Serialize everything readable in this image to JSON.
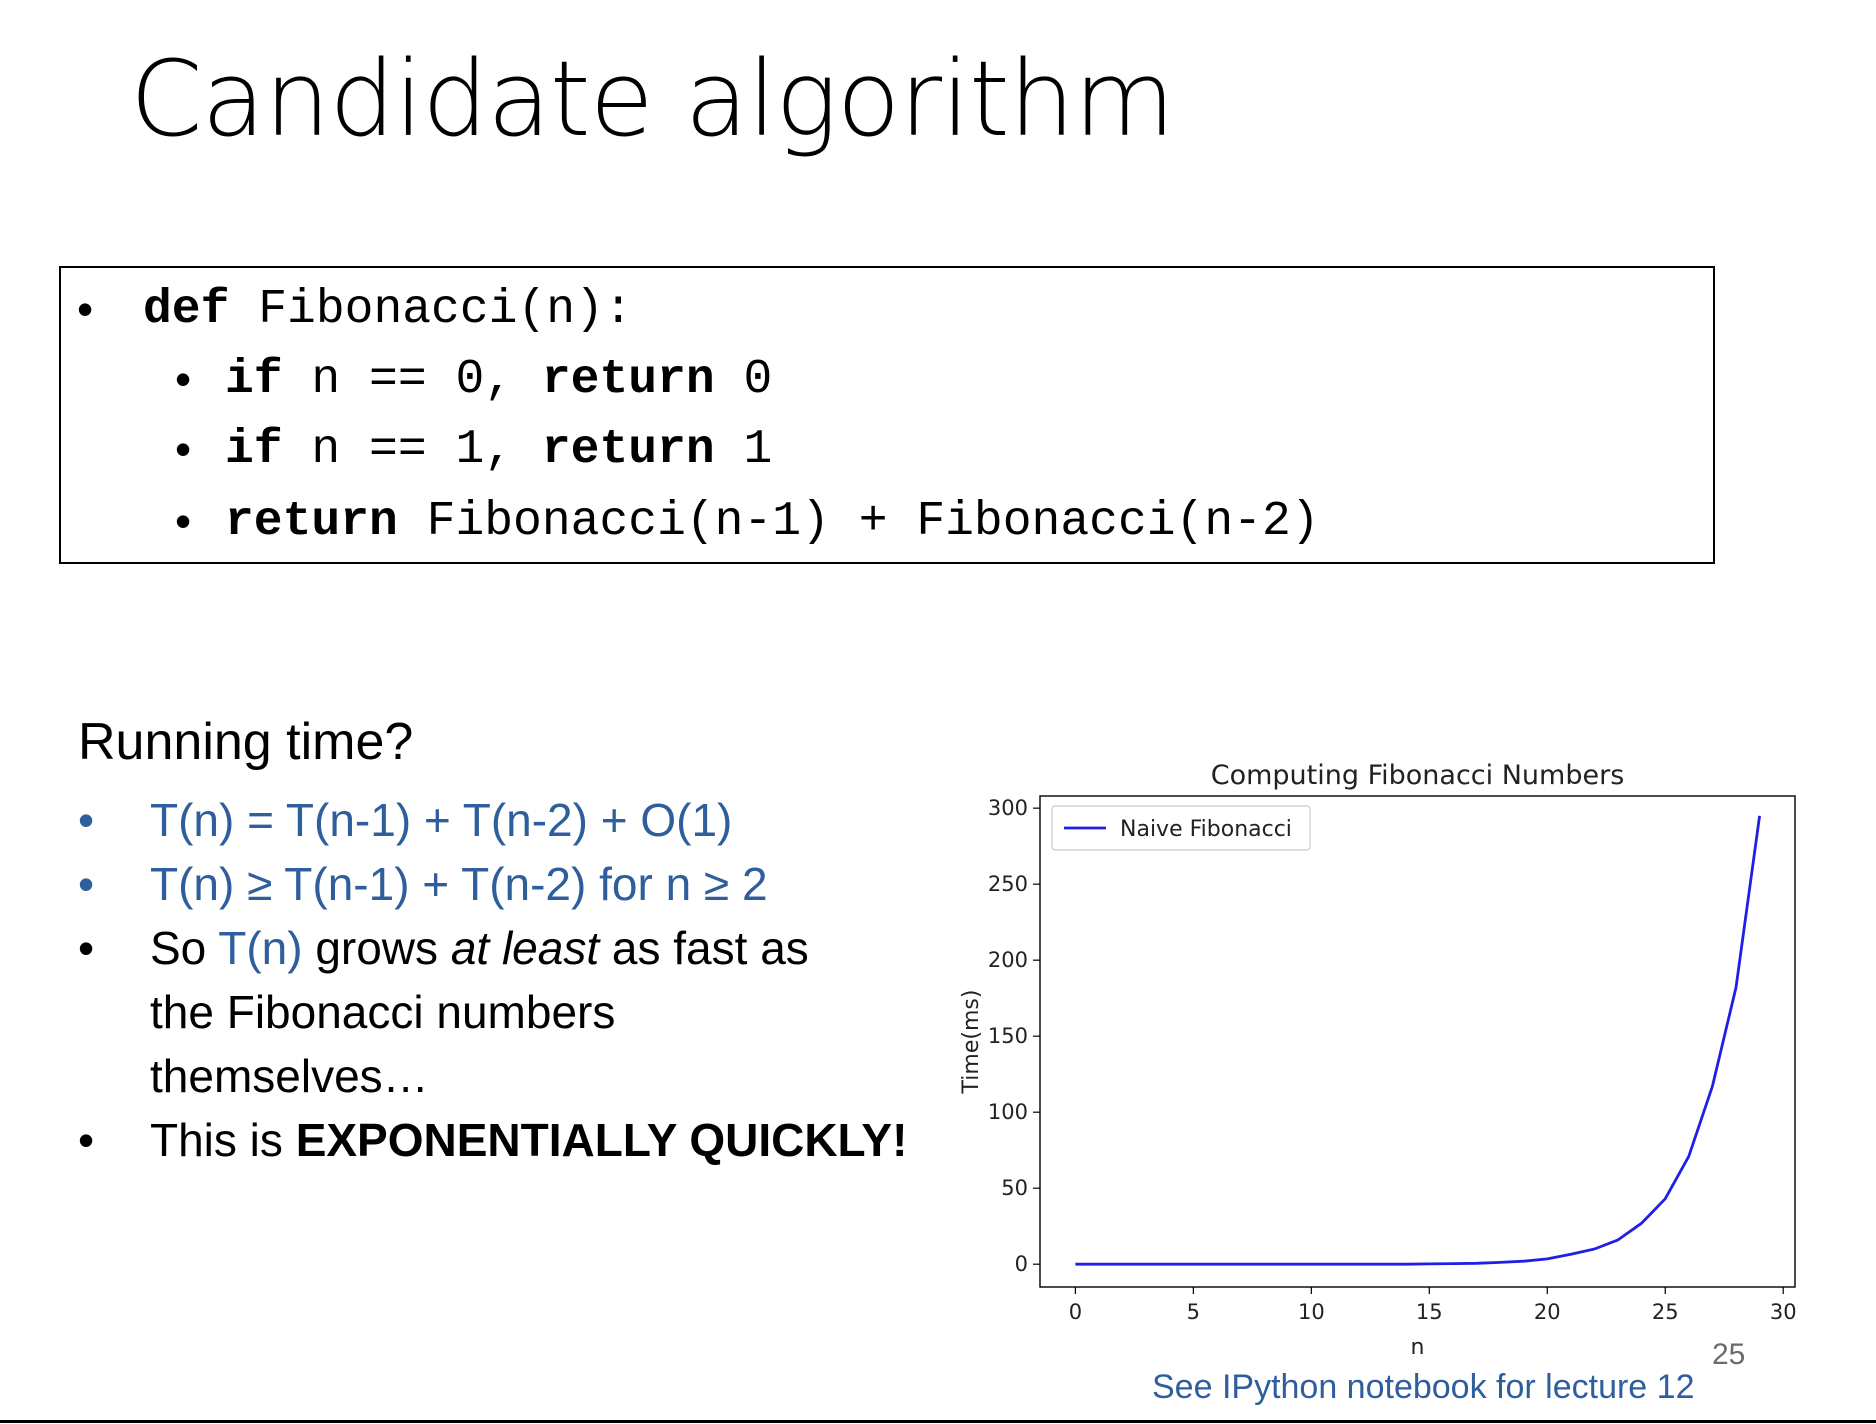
{
  "slide": {
    "title": "Candidate algorithm",
    "code": {
      "line1": {
        "bullet": "•",
        "kw": "def",
        "rest": " Fibonacci(n):"
      },
      "line2": {
        "bullet": "•",
        "kw1": "if",
        "mid": " n == 0, ",
        "kw2": "return",
        "rest": " 0"
      },
      "line3": {
        "bullet": "•",
        "kw1": "if",
        "mid": " n == 1, ",
        "kw2": "return",
        "rest": " 1"
      },
      "line4": {
        "bullet": "•",
        "kw": "return",
        "rest": " Fibonacci(n-1) + Fibonacci(n-2)"
      }
    },
    "running_time": {
      "heading": "Running time?",
      "bullet_char": "•",
      "b1": "T(n) = T(n-1) + T(n-2) + O(1)",
      "b2": "T(n) ≥ T(n-1) + T(n-2) for n ≥ 2",
      "b3_a": "So ",
      "b3_b": "T(n)",
      "b3_c": " grows ",
      "b3_d": "at least",
      "b3_e": " as fast as",
      "b3_line2": "the Fibonacci numbers",
      "b3_line3": "themselves…",
      "b4_a": "This is ",
      "b4_b": "EXPONENTIALLY QUICKLY!"
    },
    "page_number": "25",
    "footnote": "See IPython notebook for lecture 12"
  },
  "colors": {
    "blue_text": "#2e5f9c",
    "line": "#1f1fe6"
  },
  "chart_data": {
    "type": "line",
    "title": "Computing Fibonacci Numbers",
    "xlabel": "n",
    "ylabel": "Time(ms)",
    "xlim": [
      -1.5,
      30.5
    ],
    "ylim": [
      -15,
      308
    ],
    "xticks": [
      0,
      5,
      10,
      15,
      20,
      25,
      30
    ],
    "yticks": [
      0,
      50,
      100,
      150,
      200,
      250,
      300
    ],
    "legend_position": "top-left",
    "grid": false,
    "series": [
      {
        "name": "Naive Fibonacci",
        "x": [
          0,
          1,
          2,
          3,
          4,
          5,
          6,
          7,
          8,
          9,
          10,
          11,
          12,
          13,
          14,
          15,
          16,
          17,
          18,
          19,
          20,
          21,
          22,
          23,
          24,
          25,
          26,
          27,
          28,
          29
        ],
        "values": [
          0,
          0,
          0,
          0,
          0,
          0,
          0,
          0,
          0,
          0,
          0,
          0,
          0,
          0,
          0,
          0.2,
          0.4,
          0.6,
          1.2,
          2,
          3.5,
          6.5,
          10,
          16,
          27,
          43,
          71,
          117,
          182,
          295
        ]
      }
    ]
  }
}
